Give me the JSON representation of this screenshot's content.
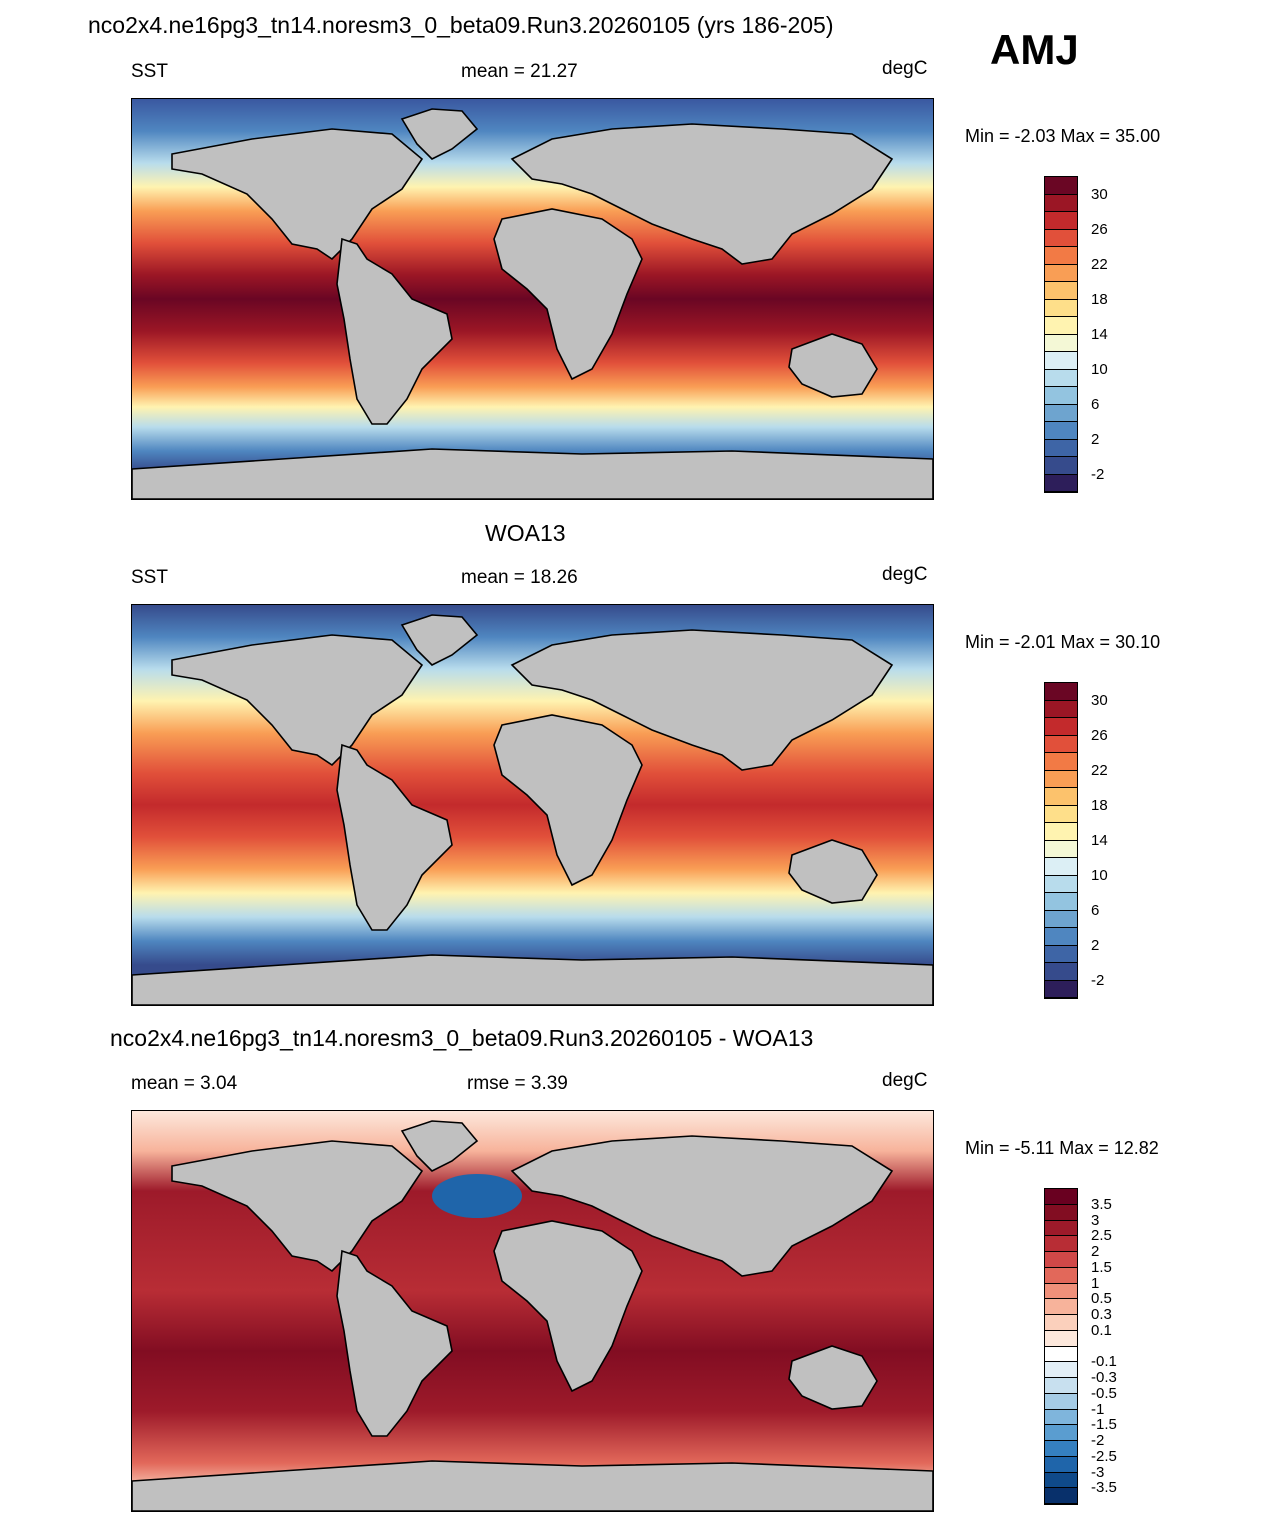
{
  "figure": {
    "run_title": "nco2x4.ne16pg3_tn14.noresm3_0_beta09.Run3.20260105 (yrs 186-205)",
    "season": "AMJ",
    "obs_title": "WOA13",
    "diff_title": "nco2x4.ne16pg3_tn14.noresm3_0_beta09.Run3.20260105 - WOA13",
    "land_color": "#c0c0c0"
  },
  "panels": [
    {
      "id": "model",
      "left_label": "SST",
      "center_label": "mean =  21.27",
      "units": "degC",
      "minmax": "Min =  -2.03 Max =  35.00",
      "colorbar": {
        "colors": [
          "#2d1e5a",
          "#364b8c",
          "#3e65a6",
          "#4f86c0",
          "#6ea4cf",
          "#93c4e0",
          "#b8dcec",
          "#dceff5",
          "#f4f8d6",
          "#fff3b0",
          "#fedf8a",
          "#fcc26c",
          "#f99e55",
          "#f27a45",
          "#e1503a",
          "#c32a2c",
          "#9b1625",
          "#6a0624"
        ],
        "tick_labels": [
          "-2",
          "2",
          "6",
          "10",
          "14",
          "18",
          "22",
          "26",
          "30"
        ]
      }
    },
    {
      "id": "obs",
      "left_label": "SST",
      "center_label": "mean =  18.26",
      "units": "degC",
      "minmax": "Min =  -2.01 Max =  30.10",
      "colorbar": {
        "colors": [
          "#2d1e5a",
          "#364b8c",
          "#3e65a6",
          "#4f86c0",
          "#6ea4cf",
          "#93c4e0",
          "#b8dcec",
          "#dceff5",
          "#f4f8d6",
          "#fff3b0",
          "#fedf8a",
          "#fcc26c",
          "#f99e55",
          "#f27a45",
          "#e1503a",
          "#c32a2c",
          "#9b1625",
          "#6a0624"
        ],
        "tick_labels": [
          "-2",
          "2",
          "6",
          "10",
          "14",
          "18",
          "22",
          "26",
          "30"
        ]
      }
    },
    {
      "id": "diff",
      "left_label": "mean =   3.04",
      "center_label": "rmse =   3.39",
      "units": "degC",
      "minmax": "Min =  -5.11 Max =  12.82",
      "colorbar": {
        "colors": [
          "#08306b",
          "#0f4a8a",
          "#1f65aa",
          "#3580c0",
          "#5a9dd0",
          "#7fb5dc",
          "#a5cce6",
          "#c8e0ef",
          "#e3eff7",
          "#ffffff",
          "#fde8dc",
          "#fbd0bc",
          "#f7b39b",
          "#f0907a",
          "#e2685a",
          "#d04848",
          "#b82d35",
          "#9d1a2a",
          "#820d22",
          "#690020"
        ],
        "tick_labels": [
          "-3.5",
          "-3",
          "-2.5",
          "-2",
          "-1.5",
          "-1",
          "-0.5",
          "-0.3",
          "-0.1",
          "0.1",
          "0.3",
          "0.5",
          "1",
          "1.5",
          "2",
          "2.5",
          "3",
          "3.5"
        ]
      }
    }
  ]
}
